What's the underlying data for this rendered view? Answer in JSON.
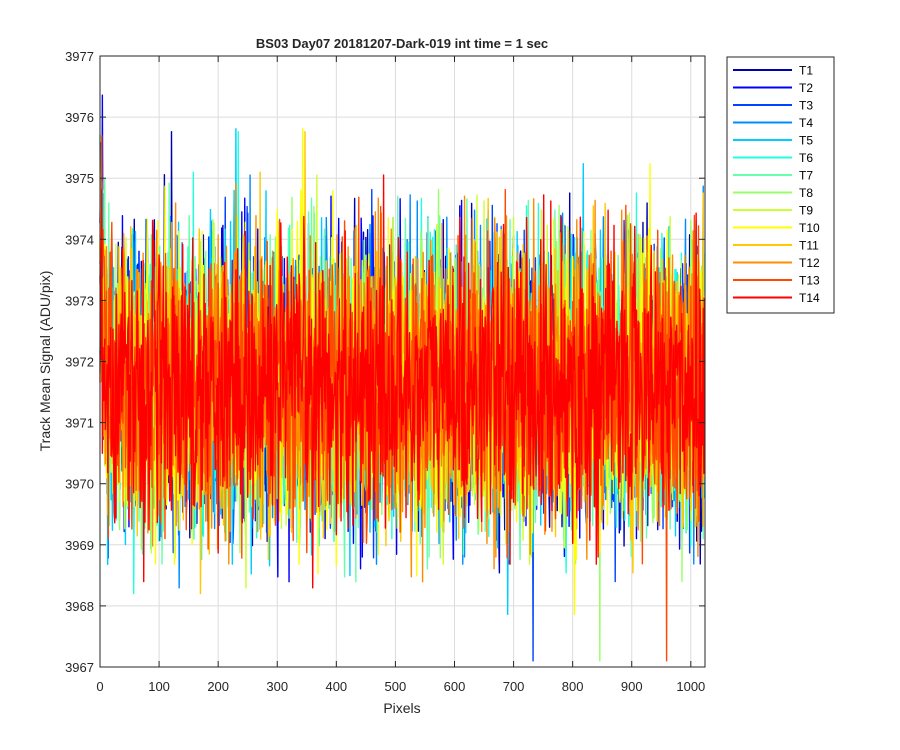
{
  "chart_data": {
    "type": "line",
    "title": "BS03 Day07 20181207-Dark-019 int time = 1 sec",
    "xlabel": "Pixels",
    "ylabel": "Track Mean Signal (ADU/pix)",
    "xlim": [
      0,
      1024
    ],
    "ylim": [
      3967,
      3977
    ],
    "x_ticks": [
      0,
      100,
      200,
      300,
      400,
      500,
      600,
      700,
      800,
      900,
      1000
    ],
    "y_ticks": [
      3967,
      3968,
      3969,
      3970,
      3971,
      3972,
      3973,
      3974,
      3975,
      3976,
      3977
    ],
    "grid": true,
    "legend_position": "outside-right",
    "series_mean": 3971.6,
    "series_std": 1.1,
    "series": [
      {
        "name": "T1",
        "color": "#0000b3"
      },
      {
        "name": "T2",
        "color": "#0000ff"
      },
      {
        "name": "T3",
        "color": "#0044ff"
      },
      {
        "name": "T4",
        "color": "#008cff"
      },
      {
        "name": "T5",
        "color": "#00ccff"
      },
      {
        "name": "T6",
        "color": "#22ffdd"
      },
      {
        "name": "T7",
        "color": "#66ffaa"
      },
      {
        "name": "T8",
        "color": "#99ff66"
      },
      {
        "name": "T9",
        "color": "#ccff33"
      },
      {
        "name": "T10",
        "color": "#ffff00"
      },
      {
        "name": "T11",
        "color": "#ffc800"
      },
      {
        "name": "T12",
        "color": "#ff8c00"
      },
      {
        "name": "T13",
        "color": "#ff4a00"
      },
      {
        "name": "T14",
        "color": "#ff0000"
      }
    ]
  }
}
